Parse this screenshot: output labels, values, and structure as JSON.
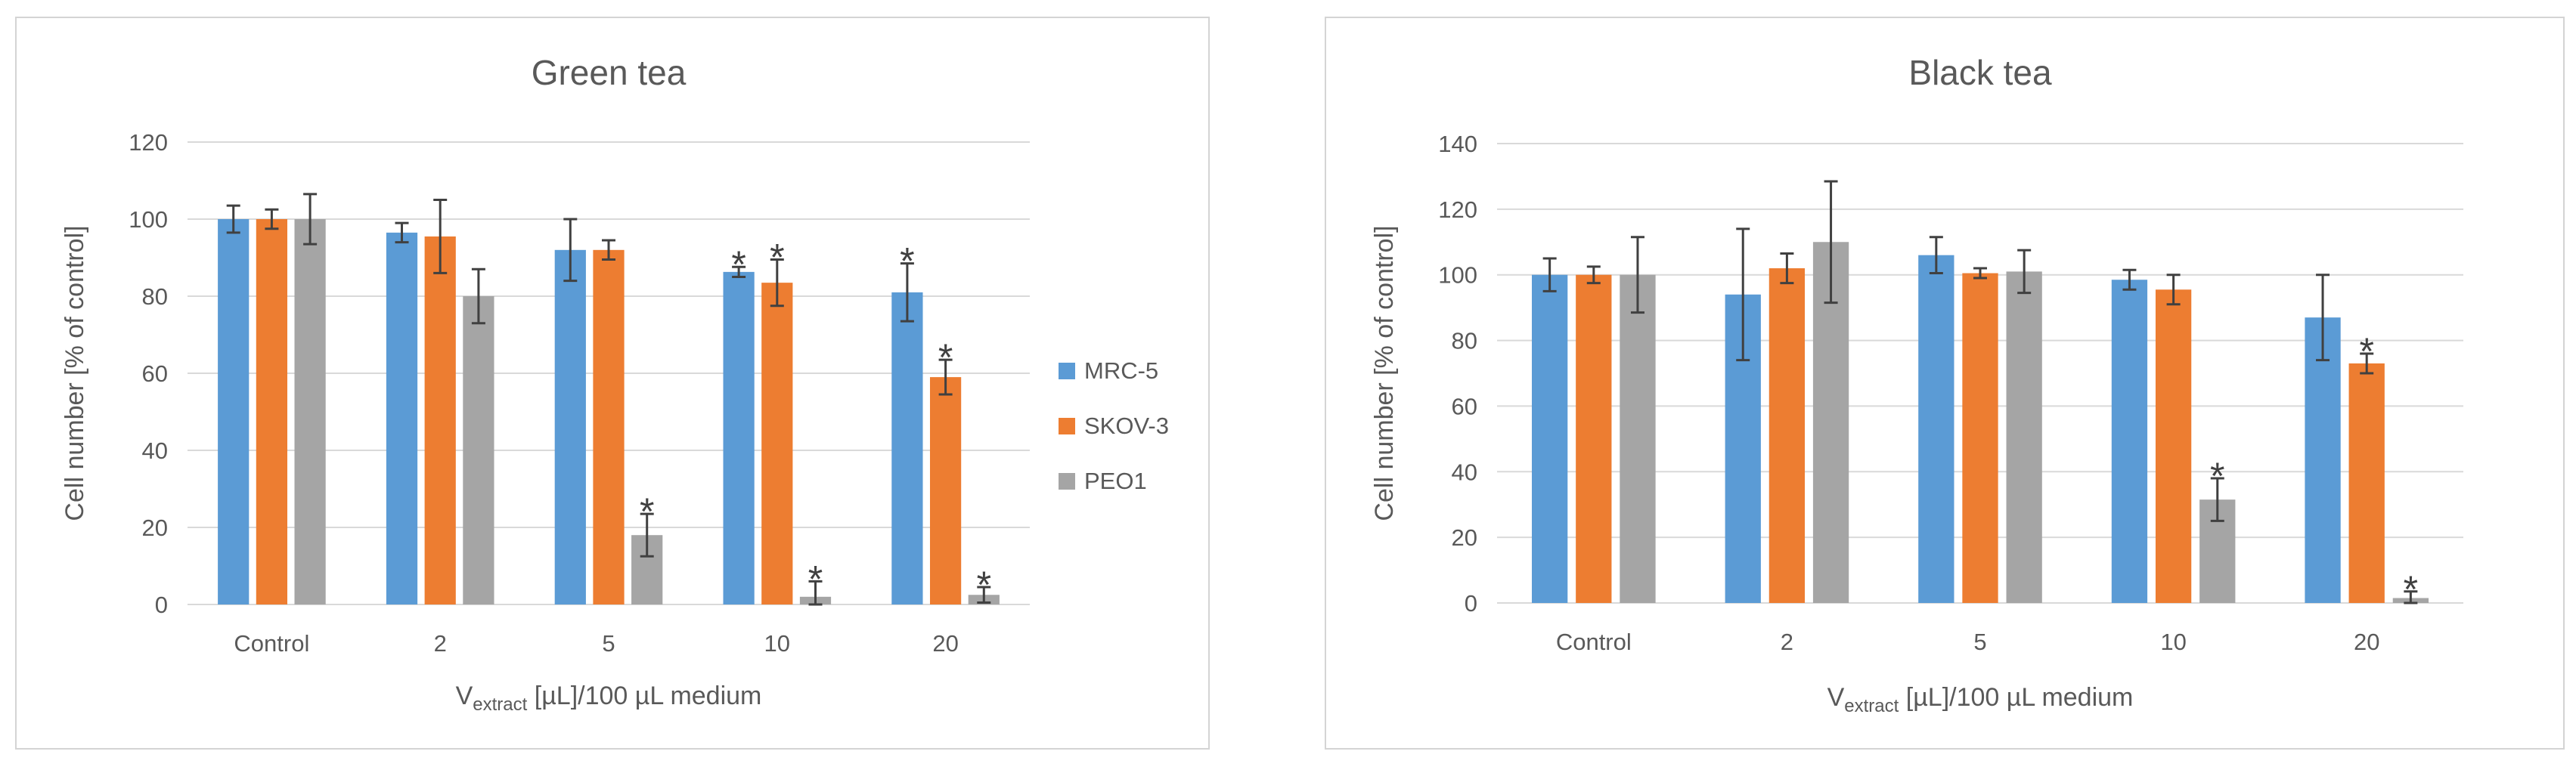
{
  "colors": {
    "MRC-5": "#5b9bd5",
    "SKOV-3": "#ed7d31",
    "PEO1": "#a5a5a5"
  },
  "legend": {
    "items": [
      {
        "name": "MRC-5",
        "color": "#5b9bd5"
      },
      {
        "name": "SKOV-3",
        "color": "#ed7d31"
      },
      {
        "name": "PEO1",
        "color": "#a5a5a5"
      }
    ]
  },
  "chart_data": [
    {
      "type": "bar",
      "title": "Green tea",
      "ylabel": "Cell number [% of control]",
      "xlabel": {
        "main": "V",
        "subscript": "extract",
        "rest": " [µL]/100 µL medium"
      },
      "categories": [
        "Control",
        "2",
        "5",
        "10",
        "20"
      ],
      "ylim": [
        0,
        120
      ],
      "yticks": [
        0,
        20,
        40,
        60,
        80,
        100,
        120
      ],
      "significance_marker": "*",
      "series": [
        {
          "name": "MRC-5",
          "values": [
            100,
            96.5,
            92,
            86.3,
            81
          ],
          "errors": [
            3.5,
            2.5,
            8,
            1.3,
            7.5
          ],
          "significant": [
            false,
            false,
            false,
            true,
            true
          ]
        },
        {
          "name": "SKOV-3",
          "values": [
            100,
            95.5,
            92,
            83.5,
            59
          ],
          "errors": [
            2.5,
            9.5,
            2.5,
            6,
            4.5
          ],
          "significant": [
            false,
            false,
            false,
            true,
            true
          ]
        },
        {
          "name": "PEO1",
          "values": [
            100,
            80,
            18,
            2,
            2.5
          ],
          "errors": [
            6.5,
            7,
            5.5,
            4,
            2
          ],
          "significant": [
            false,
            false,
            true,
            true,
            true
          ]
        }
      ]
    },
    {
      "type": "bar",
      "title": "Black tea",
      "ylabel": "Cell number [% of control]",
      "xlabel": {
        "main": "V",
        "subscript": "extract",
        "rest": " [µL]/100 µL medium"
      },
      "categories": [
        "Control",
        "2",
        "5",
        "10",
        "20"
      ],
      "ylim": [
        0,
        140
      ],
      "yticks": [
        0,
        20,
        40,
        60,
        80,
        100,
        120,
        140
      ],
      "significance_marker": "*",
      "series": [
        {
          "name": "MRC-5",
          "values": [
            100,
            94,
            106,
            98.5,
            87
          ],
          "errors": [
            5,
            20,
            5.5,
            3,
            13
          ],
          "significant": [
            false,
            false,
            false,
            false,
            false
          ]
        },
        {
          "name": "SKOV-3",
          "values": [
            100,
            102,
            100.5,
            95.5,
            73
          ],
          "errors": [
            2.5,
            4.5,
            1.5,
            4.5,
            3
          ],
          "significant": [
            false,
            false,
            false,
            false,
            true
          ]
        },
        {
          "name": "PEO1",
          "values": [
            100,
            110,
            101,
            31.5,
            1.5
          ],
          "errors": [
            11.5,
            18.5,
            6.5,
            6.5,
            2
          ],
          "significant": [
            false,
            false,
            false,
            true,
            true
          ]
        }
      ]
    }
  ]
}
